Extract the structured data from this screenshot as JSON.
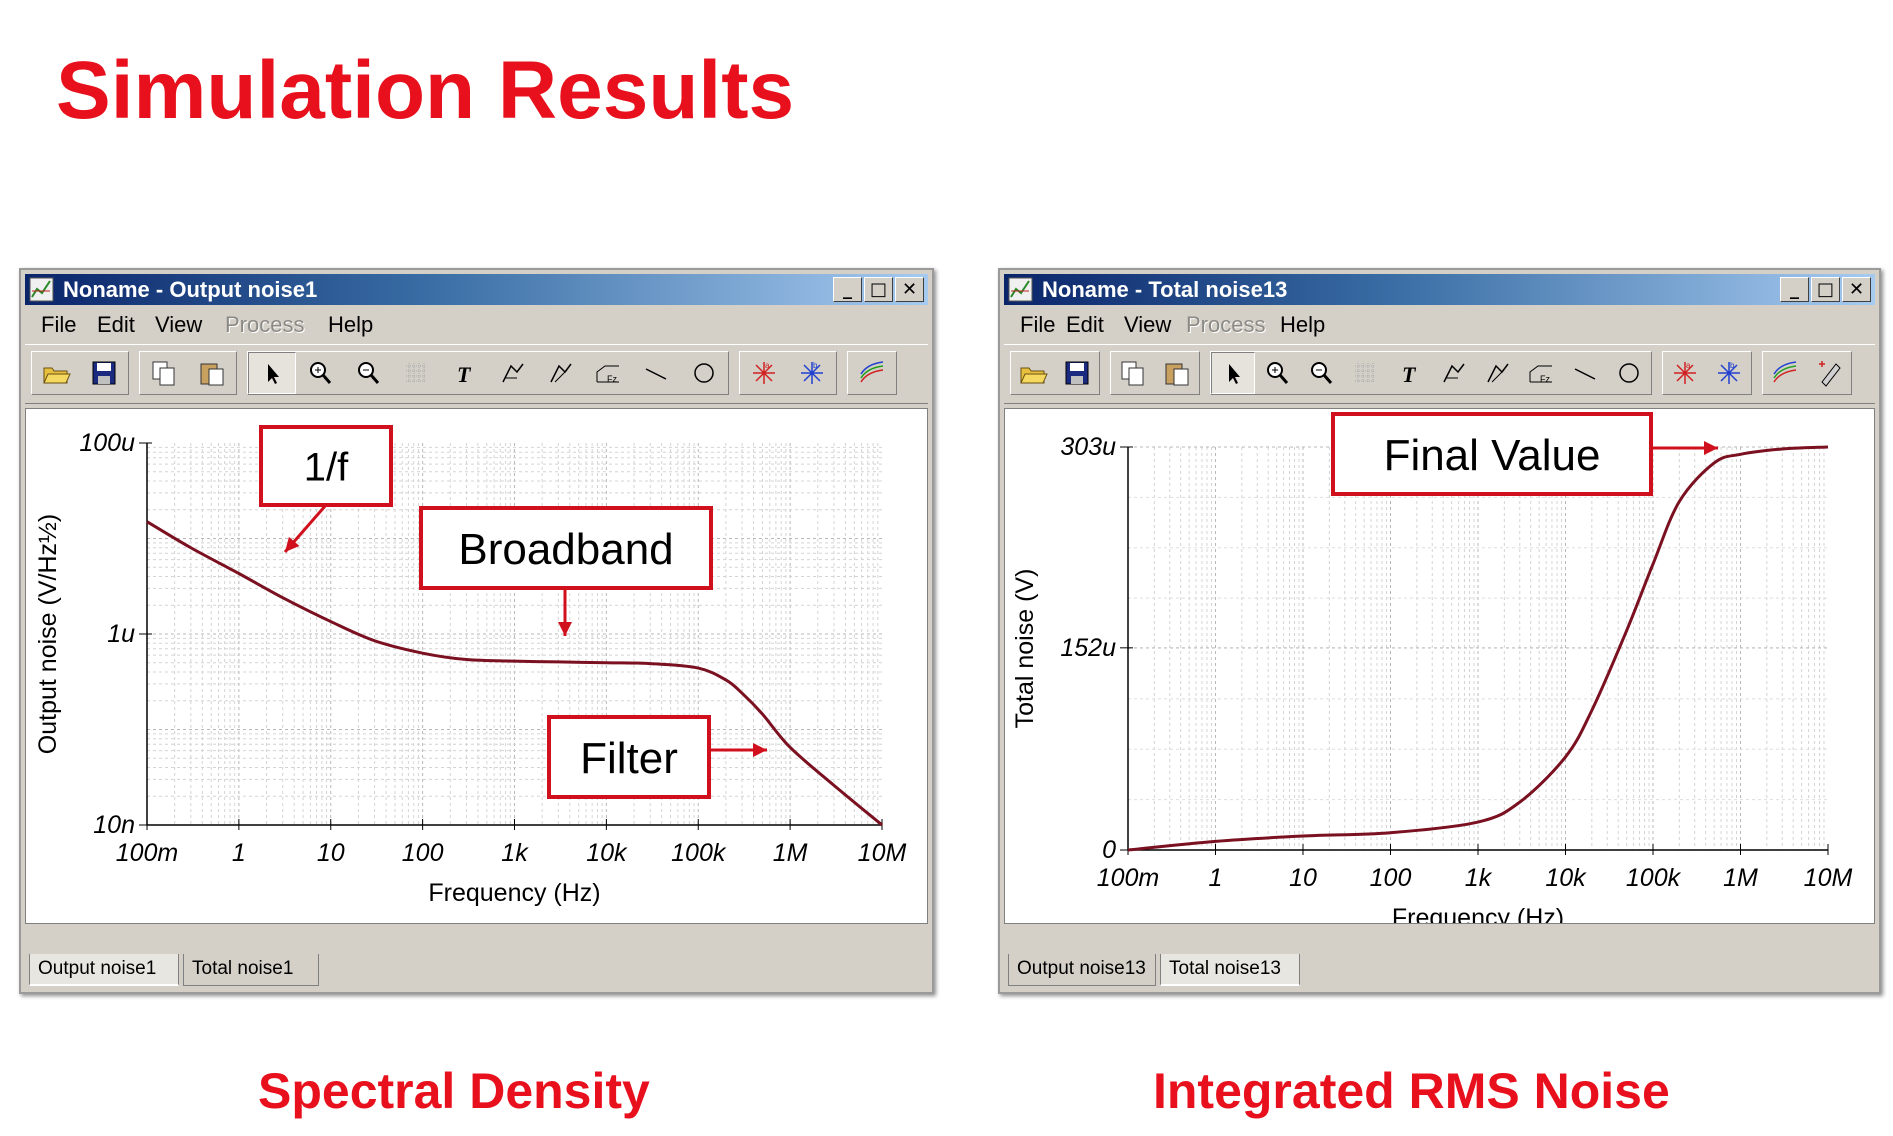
{
  "slide": {
    "title": "Simulation Results",
    "caption_left": "Spectral Density",
    "caption_right": "Integrated RMS Noise"
  },
  "colors": {
    "accent_red": "#e8101c",
    "curve": "#7a1020",
    "annotation_box": "#d0101c",
    "titlebar_start": "#0a246a",
    "titlebar_end": "#a6caf0"
  },
  "menu": [
    {
      "label": "File",
      "enabled": true
    },
    {
      "label": "Edit",
      "enabled": true
    },
    {
      "label": "View",
      "enabled": true
    },
    {
      "label": "Process",
      "enabled": false
    },
    {
      "label": "Help",
      "enabled": true
    }
  ],
  "toolbar_icons": [
    "open-folder-icon",
    "save-disk-icon",
    "copy-icon",
    "paste-icon",
    "pointer-arrow-icon",
    "zoom-in-icon",
    "zoom-fit-icon",
    "grid-icon",
    "text-tool-icon",
    "cursor-a-icon",
    "cursor-b-icon",
    "title-tool-icon",
    "line-tool-icon",
    "circle-tool-icon",
    "marker-a-icon",
    "marker-b-icon",
    "curves-icon",
    "pen-icon"
  ],
  "windows": [
    {
      "title": "Noname - Output noise1",
      "tabs": [
        "Output noise1",
        "Total noise1"
      ],
      "active_tab": 0,
      "annotations": [
        "1/f",
        "Broadband",
        "Filter"
      ]
    },
    {
      "title": "Noname - Total noise13",
      "tabs": [
        "Output noise13",
        "Total noise13"
      ],
      "active_tab": 1,
      "annotations": [
        "Final Value"
      ]
    }
  ],
  "chart_data": [
    {
      "type": "line",
      "title": "",
      "xlabel": "Frequency (Hz)",
      "ylabel": "Output noise (V/Hz½)",
      "x_scale": "log",
      "y_scale": "log",
      "xlim": [
        0.1,
        10000000
      ],
      "ylim": [
        1e-08,
        0.0001
      ],
      "x_tick_values": [
        0.1,
        1,
        10,
        100,
        1000,
        10000,
        100000,
        1000000,
        10000000
      ],
      "x_tick_labels": [
        "100m",
        "1",
        "10",
        "100",
        "1k",
        "10k",
        "100k",
        "1M",
        "10M"
      ],
      "y_tick_values": [
        0.0001,
        1e-06,
        1e-08
      ],
      "y_tick_labels": [
        "100u",
        "1u",
        "10n"
      ],
      "grid": true,
      "series": [
        {
          "x": [
            0.1,
            0.3,
            1,
            3,
            10,
            30,
            100,
            300,
            1000,
            3000,
            10000,
            30000,
            100000,
            200000,
            300000,
            500000,
            1000000,
            3000000,
            10000000
          ],
          "y": [
            1.5e-05,
            8e-06,
            4.3e-06,
            2.4e-06,
            1.35e-06,
            8.5e-07,
            6.3e-07,
            5.4e-07,
            5.2e-07,
            5.1e-07,
            5e-07,
            4.9e-07,
            4.4e-07,
            3.3e-07,
            2.4e-07,
            1.45e-07,
            6.5e-08,
            2.6e-08,
            1e-08
          ]
        }
      ]
    },
    {
      "type": "line",
      "title": "",
      "xlabel": "Frequency (Hz)",
      "ylabel": "Total noise (V)",
      "x_scale": "log",
      "y_scale": "linear",
      "xlim": [
        0.1,
        10000000
      ],
      "ylim": [
        0,
        0.000303
      ],
      "x_tick_values": [
        0.1,
        1,
        10,
        100,
        1000,
        10000,
        100000,
        1000000,
        10000000
      ],
      "x_tick_labels": [
        "100m",
        "1",
        "10",
        "100",
        "1k",
        "10k",
        "100k",
        "1M",
        "10M"
      ],
      "y_tick_values": [
        0,
        0.000152,
        0.000303
      ],
      "y_tick_labels": [
        "0",
        "152u",
        "303u"
      ],
      "grid": true,
      "series": [
        {
          "x": [
            0.1,
            1,
            10,
            100,
            1000,
            3000,
            10000,
            20000,
            50000,
            100000,
            200000,
            500000,
            1000000,
            3000000,
            10000000
          ],
          "y": [
            0,
            6.5e-06,
            1.05e-05,
            1.3e-05,
            2.1e-05,
            3.6e-05,
            7e-05,
            0.000105,
            0.000165,
            0.000215,
            0.000262,
            0.000291,
            0.0002975,
            0.0003015,
            0.000303
          ]
        }
      ]
    }
  ]
}
